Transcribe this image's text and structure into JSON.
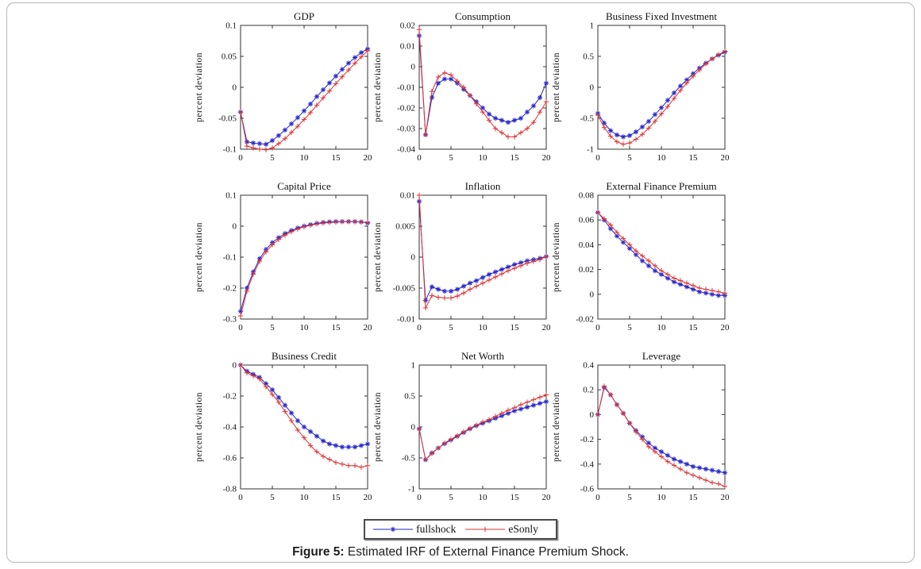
{
  "figure": {
    "caption_label": "Figure 5:",
    "caption_text": " Estimated IRF of External Finance Premium Shock."
  },
  "legend": {
    "position": "bottom-center",
    "items": [
      {
        "label": "fullshock",
        "color": "#2626cc",
        "marker": "star"
      },
      {
        "label": "eSonly",
        "color": "#dd3333",
        "marker": "plus"
      }
    ]
  },
  "colors": {
    "fullshock": "#2626cc",
    "eSonly": "#dd3333",
    "axis": "#333333"
  },
  "chart_data": [
    {
      "type": "line",
      "title": "GDP",
      "ylabel": "percent deviation",
      "xlim": [
        0,
        20
      ],
      "ylim": [
        -0.1,
        0.1
      ],
      "xticks": [
        0,
        5,
        10,
        15,
        20
      ],
      "yticks": [
        -0.1,
        -0.05,
        0,
        0.05,
        0.1
      ],
      "ytick_labels": [
        "-0.1",
        "-0.05",
        "0",
        "0.05",
        "0.1"
      ],
      "x": [
        0,
        1,
        2,
        3,
        4,
        5,
        6,
        7,
        8,
        9,
        10,
        11,
        12,
        13,
        14,
        15,
        16,
        17,
        18,
        19,
        20
      ],
      "series": [
        {
          "name": "fullshock",
          "marker": "star",
          "values": [
            -0.04,
            -0.088,
            -0.09,
            -0.091,
            -0.092,
            -0.086,
            -0.078,
            -0.069,
            -0.059,
            -0.049,
            -0.038,
            -0.027,
            -0.015,
            -0.004,
            0.007,
            0.018,
            0.029,
            0.039,
            0.048,
            0.056,
            0.062
          ]
        },
        {
          "name": "eSonly",
          "marker": "plus",
          "values": [
            -0.04,
            -0.095,
            -0.098,
            -0.1,
            -0.101,
            -0.098,
            -0.091,
            -0.083,
            -0.073,
            -0.063,
            -0.052,
            -0.041,
            -0.029,
            -0.017,
            -0.006,
            0.006,
            0.017,
            0.028,
            0.039,
            0.049,
            0.059
          ]
        }
      ]
    },
    {
      "type": "line",
      "title": "Consumption",
      "ylabel": "percent deviation",
      "xlim": [
        0,
        20
      ],
      "ylim": [
        -0.04,
        0.02
      ],
      "xticks": [
        0,
        5,
        10,
        15,
        20
      ],
      "yticks": [
        -0.04,
        -0.03,
        -0.02,
        -0.01,
        0,
        0.01,
        0.02
      ],
      "ytick_labels": [
        "-0.04",
        "-0.03",
        "-0.02",
        "-0.01",
        "0",
        "0.01",
        "0.02"
      ],
      "x": [
        0,
        1,
        2,
        3,
        4,
        5,
        6,
        7,
        8,
        9,
        10,
        11,
        12,
        13,
        14,
        15,
        16,
        17,
        18,
        19,
        20
      ],
      "series": [
        {
          "name": "fullshock",
          "marker": "star",
          "values": [
            0.015,
            -0.033,
            -0.015,
            -0.008,
            -0.006,
            -0.006,
            -0.008,
            -0.011,
            -0.014,
            -0.017,
            -0.02,
            -0.023,
            -0.025,
            -0.026,
            -0.027,
            -0.026,
            -0.025,
            -0.022,
            -0.019,
            -0.015,
            -0.008
          ]
        },
        {
          "name": "eSonly",
          "marker": "plus",
          "values": [
            0.018,
            -0.033,
            -0.012,
            -0.005,
            -0.003,
            -0.004,
            -0.007,
            -0.01,
            -0.014,
            -0.018,
            -0.022,
            -0.026,
            -0.03,
            -0.032,
            -0.034,
            -0.034,
            -0.032,
            -0.03,
            -0.027,
            -0.022,
            -0.017
          ]
        }
      ]
    },
    {
      "type": "line",
      "title": "Business Fixed Investment",
      "ylabel": "percent deviation",
      "xlim": [
        0,
        20
      ],
      "ylim": [
        -1,
        1
      ],
      "xticks": [
        0,
        5,
        10,
        15,
        20
      ],
      "yticks": [
        -1,
        -0.5,
        0,
        0.5,
        1
      ],
      "ytick_labels": [
        "-1",
        "-0.5",
        "0",
        "0.5",
        "1"
      ],
      "x": [
        0,
        1,
        2,
        3,
        4,
        5,
        6,
        7,
        8,
        9,
        10,
        11,
        12,
        13,
        14,
        15,
        16,
        17,
        18,
        19,
        20
      ],
      "series": [
        {
          "name": "fullshock",
          "marker": "star",
          "values": [
            -0.42,
            -0.58,
            -0.7,
            -0.77,
            -0.8,
            -0.78,
            -0.72,
            -0.64,
            -0.55,
            -0.44,
            -0.33,
            -0.21,
            -0.09,
            0.02,
            0.12,
            0.22,
            0.31,
            0.39,
            0.46,
            0.52,
            0.57
          ]
        },
        {
          "name": "eSonly",
          "marker": "plus",
          "values": [
            -0.45,
            -0.65,
            -0.79,
            -0.88,
            -0.92,
            -0.9,
            -0.84,
            -0.76,
            -0.66,
            -0.55,
            -0.43,
            -0.31,
            -0.18,
            -0.05,
            0.07,
            0.18,
            0.28,
            0.38,
            0.46,
            0.53,
            0.58
          ]
        }
      ]
    },
    {
      "type": "line",
      "title": "Capital Price",
      "ylabel": "percent deviation",
      "xlim": [
        0,
        20
      ],
      "ylim": [
        -0.3,
        0.1
      ],
      "xticks": [
        0,
        5,
        10,
        15,
        20
      ],
      "yticks": [
        -0.3,
        -0.2,
        -0.1,
        0,
        0.1
      ],
      "ytick_labels": [
        "-0.3",
        "-0.2",
        "-0.1",
        "0",
        "0.1"
      ],
      "x": [
        0,
        1,
        2,
        3,
        4,
        5,
        6,
        7,
        8,
        9,
        10,
        11,
        12,
        13,
        14,
        15,
        16,
        17,
        18,
        19,
        20
      ],
      "series": [
        {
          "name": "fullshock",
          "marker": "star",
          "values": [
            -0.275,
            -0.2,
            -0.148,
            -0.105,
            -0.075,
            -0.053,
            -0.037,
            -0.024,
            -0.014,
            -0.006,
            0,
            0.005,
            0.009,
            0.012,
            0.014,
            0.015,
            0.015,
            0.015,
            0.015,
            0.014,
            0.01
          ]
        },
        {
          "name": "eSonly",
          "marker": "plus",
          "values": [
            -0.29,
            -0.21,
            -0.155,
            -0.113,
            -0.083,
            -0.06,
            -0.043,
            -0.029,
            -0.018,
            -0.009,
            -0.002,
            0.003,
            0.007,
            0.01,
            0.012,
            0.013,
            0.014,
            0.014,
            0.014,
            0.013,
            0.012
          ]
        }
      ]
    },
    {
      "type": "line",
      "title": "Inflation",
      "ylabel": "percent deviation",
      "xlim": [
        0,
        20
      ],
      "ylim": [
        -0.01,
        0.01
      ],
      "xticks": [
        0,
        5,
        10,
        15,
        20
      ],
      "yticks": [
        -0.01,
        -0.005,
        0,
        0.005,
        0.01
      ],
      "ytick_labels": [
        "-0.01",
        "-0.005",
        "0",
        "0.005",
        "0.01"
      ],
      "x": [
        0,
        1,
        2,
        3,
        4,
        5,
        6,
        7,
        8,
        9,
        10,
        11,
        12,
        13,
        14,
        15,
        16,
        17,
        18,
        19,
        20
      ],
      "series": [
        {
          "name": "fullshock",
          "marker": "star",
          "values": [
            0.009,
            -0.007,
            -0.0048,
            -0.0052,
            -0.0055,
            -0.0055,
            -0.0052,
            -0.0047,
            -0.0042,
            -0.0038,
            -0.0033,
            -0.0028,
            -0.0024,
            -0.002,
            -0.0016,
            -0.0012,
            -0.0009,
            -0.0006,
            -0.0004,
            -0.0002,
            0.0001
          ]
        },
        {
          "name": "eSonly",
          "marker": "plus",
          "values": [
            0.01,
            -0.0082,
            -0.0062,
            -0.0065,
            -0.0066,
            -0.0066,
            -0.0063,
            -0.0058,
            -0.0052,
            -0.0047,
            -0.0042,
            -0.0037,
            -0.0032,
            -0.0027,
            -0.0022,
            -0.0018,
            -0.0014,
            -0.001,
            -0.0007,
            -0.0004,
            0.0001
          ]
        }
      ]
    },
    {
      "type": "line",
      "title": "External Finance Premium",
      "ylabel": "percent deviation",
      "xlim": [
        0,
        20
      ],
      "ylim": [
        -0.02,
        0.08
      ],
      "xticks": [
        0,
        5,
        10,
        15,
        20
      ],
      "yticks": [
        -0.02,
        0,
        0.02,
        0.04,
        0.06,
        0.08
      ],
      "ytick_labels": [
        "-0.02",
        "0",
        "0.02",
        "0.04",
        "0.06",
        "0.08"
      ],
      "x": [
        0,
        1,
        2,
        3,
        4,
        5,
        6,
        7,
        8,
        9,
        10,
        11,
        12,
        13,
        14,
        15,
        16,
        17,
        18,
        19,
        20
      ],
      "series": [
        {
          "name": "fullshock",
          "marker": "star",
          "values": [
            0.066,
            0.06,
            0.053,
            0.047,
            0.042,
            0.037,
            0.032,
            0.027,
            0.023,
            0.019,
            0.016,
            0.013,
            0.01,
            0.008,
            0.006,
            0.004,
            0.002,
            0.001,
            0,
            -0.001,
            -0.001
          ]
        },
        {
          "name": "eSonly",
          "marker": "plus",
          "values": [
            0.066,
            0.061,
            0.056,
            0.05,
            0.045,
            0.04,
            0.035,
            0.031,
            0.027,
            0.023,
            0.019,
            0.016,
            0.013,
            0.011,
            0.009,
            0.007,
            0.005,
            0.004,
            0.003,
            0.002,
            0.001
          ]
        }
      ]
    },
    {
      "type": "line",
      "title": "Business Credit",
      "ylabel": "percent deviation",
      "xlim": [
        0,
        20
      ],
      "ylim": [
        -0.8,
        0
      ],
      "xticks": [
        0,
        5,
        10,
        15,
        20
      ],
      "yticks": [
        -0.8,
        -0.6,
        -0.4,
        -0.2,
        0
      ],
      "ytick_labels": [
        "-0.8",
        "-0.6",
        "-0.4",
        "-0.2",
        "0"
      ],
      "x": [
        0,
        1,
        2,
        3,
        4,
        5,
        6,
        7,
        8,
        9,
        10,
        11,
        12,
        13,
        14,
        15,
        16,
        17,
        18,
        19,
        20
      ],
      "series": [
        {
          "name": "fullshock",
          "marker": "star",
          "values": [
            0,
            -0.04,
            -0.06,
            -0.08,
            -0.12,
            -0.16,
            -0.21,
            -0.26,
            -0.31,
            -0.36,
            -0.4,
            -0.43,
            -0.46,
            -0.49,
            -0.51,
            -0.52,
            -0.53,
            -0.53,
            -0.53,
            -0.52,
            -0.51
          ]
        },
        {
          "name": "eSonly",
          "marker": "plus",
          "values": [
            0,
            -0.05,
            -0.07,
            -0.09,
            -0.14,
            -0.19,
            -0.24,
            -0.3,
            -0.36,
            -0.42,
            -0.47,
            -0.52,
            -0.56,
            -0.59,
            -0.61,
            -0.63,
            -0.64,
            -0.65,
            -0.65,
            -0.66,
            -0.65
          ]
        }
      ]
    },
    {
      "type": "line",
      "title": "Net Worth",
      "ylabel": "percent deviation",
      "xlim": [
        0,
        20
      ],
      "ylim": [
        -1,
        1
      ],
      "xticks": [
        0,
        5,
        10,
        15,
        20
      ],
      "yticks": [
        -1,
        -0.5,
        0,
        0.5,
        1
      ],
      "ytick_labels": [
        "-1",
        "-0.5",
        "0",
        "0.5",
        "1"
      ],
      "x": [
        0,
        1,
        2,
        3,
        4,
        5,
        6,
        7,
        8,
        9,
        10,
        11,
        12,
        13,
        14,
        15,
        16,
        17,
        18,
        19,
        20
      ],
      "series": [
        {
          "name": "fullshock",
          "marker": "star",
          "values": [
            -0.03,
            -0.53,
            -0.42,
            -0.34,
            -0.27,
            -0.21,
            -0.15,
            -0.09,
            -0.03,
            0.02,
            0.06,
            0.1,
            0.14,
            0.18,
            0.22,
            0.26,
            0.29,
            0.32,
            0.35,
            0.38,
            0.41
          ]
        },
        {
          "name": "eSonly",
          "marker": "plus",
          "values": [
            -0.03,
            -0.53,
            -0.43,
            -0.34,
            -0.26,
            -0.2,
            -0.14,
            -0.08,
            -0.02,
            0.03,
            0.08,
            0.12,
            0.17,
            0.22,
            0.27,
            0.31,
            0.36,
            0.4,
            0.44,
            0.48,
            0.52
          ]
        }
      ]
    },
    {
      "type": "line",
      "title": "Leverage",
      "ylabel": "percent deviation",
      "xlim": [
        0,
        20
      ],
      "ylim": [
        -0.6,
        0.4
      ],
      "xticks": [
        0,
        5,
        10,
        15,
        20
      ],
      "yticks": [
        -0.6,
        -0.4,
        -0.2,
        0,
        0.2,
        0.4
      ],
      "ytick_labels": [
        "-0.6",
        "-0.4",
        "-0.2",
        "0",
        "0.2",
        "0.4"
      ],
      "x": [
        0,
        1,
        2,
        3,
        4,
        5,
        6,
        7,
        8,
        9,
        10,
        11,
        12,
        13,
        14,
        15,
        16,
        17,
        18,
        19,
        20
      ],
      "series": [
        {
          "name": "fullshock",
          "marker": "star",
          "values": [
            0,
            0.22,
            0.16,
            0.08,
            0.01,
            -0.07,
            -0.13,
            -0.18,
            -0.23,
            -0.27,
            -0.3,
            -0.33,
            -0.36,
            -0.38,
            -0.4,
            -0.42,
            -0.43,
            -0.44,
            -0.45,
            -0.46,
            -0.47
          ]
        },
        {
          "name": "eSonly",
          "marker": "plus",
          "values": [
            0,
            0.23,
            0.16,
            0.08,
            0.01,
            -0.07,
            -0.14,
            -0.2,
            -0.26,
            -0.3,
            -0.34,
            -0.38,
            -0.41,
            -0.44,
            -0.47,
            -0.49,
            -0.51,
            -0.53,
            -0.55,
            -0.56,
            -0.58
          ]
        }
      ]
    }
  ]
}
